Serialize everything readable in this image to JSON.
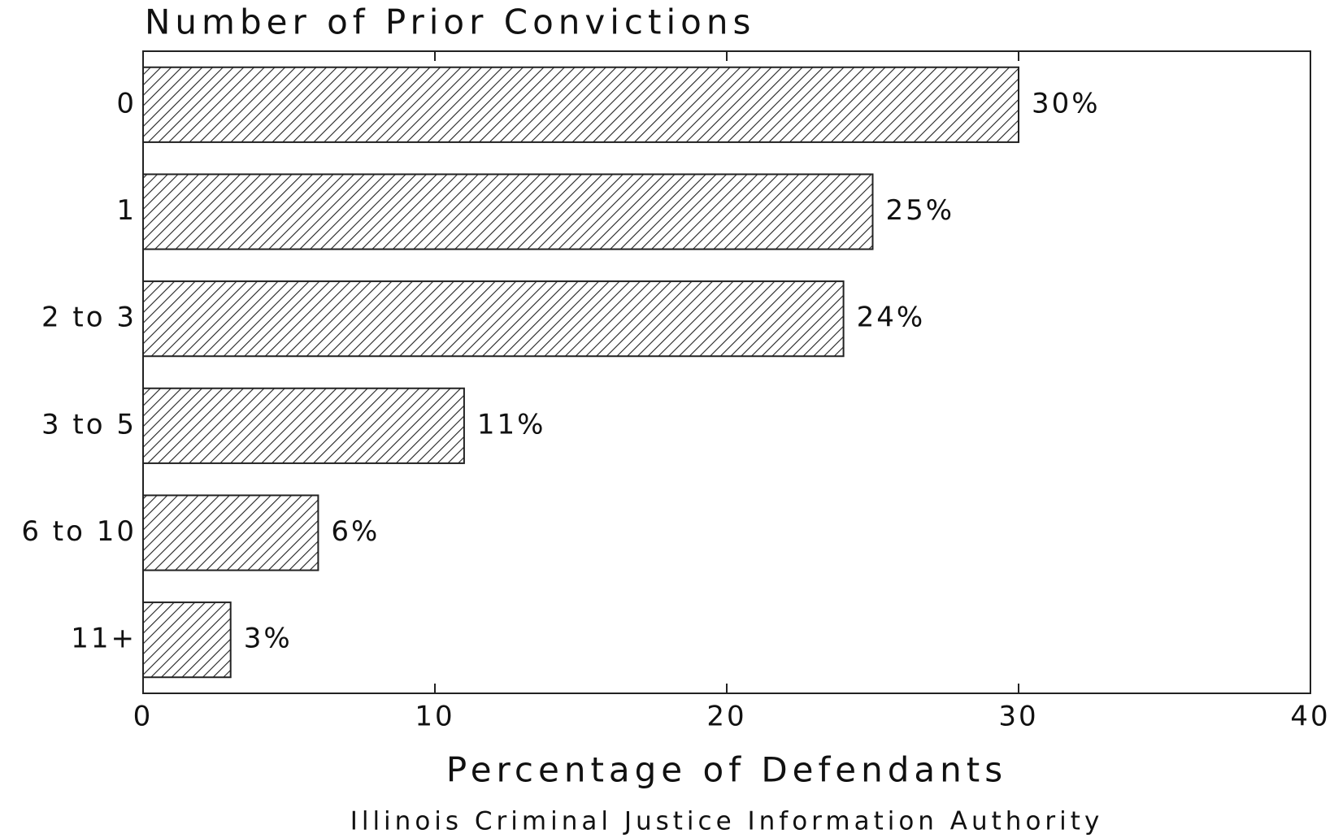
{
  "chart_data": {
    "type": "bar",
    "orientation": "horizontal",
    "title": "Number of Prior Convictions",
    "xlabel": "Percentage of Defendants",
    "source": "Illinois Criminal Justice Information Authority",
    "categories": [
      "0",
      "1",
      "2 to 3",
      "3 to 5",
      "6 to 10",
      "11+"
    ],
    "values": [
      30,
      25,
      24,
      11,
      6,
      3
    ],
    "value_labels": [
      "30%",
      "25%",
      "24%",
      "11%",
      "6%",
      "3%"
    ],
    "color": "#222222",
    "xlim": [
      0,
      40
    ],
    "xticks": [
      0,
      10,
      20,
      30,
      40
    ]
  }
}
